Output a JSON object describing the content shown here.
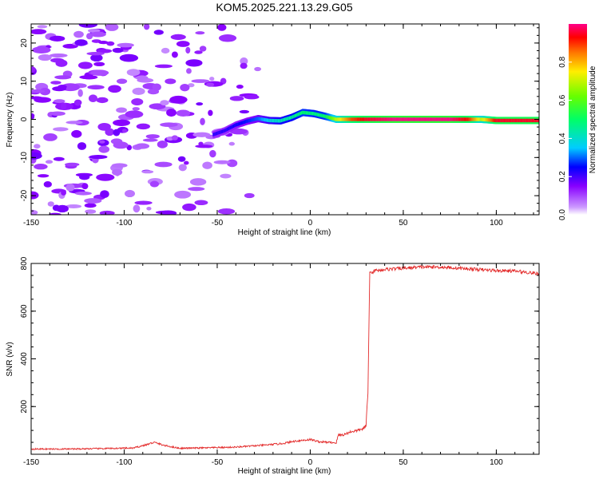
{
  "title": "KOM5.2025.221.13.29.G05",
  "colors": {
    "snr_line": "#e32b2b",
    "axes": "#000000",
    "background": "#ffffff"
  },
  "chart_data": [
    {
      "type": "heatmap",
      "name": "spectrogram",
      "xlabel": "Height of straight line (km)",
      "ylabel": "Frequency (Hz)",
      "xlim": [
        -150,
        123
      ],
      "ylim": [
        -25,
        25
      ],
      "x_ticks": [
        {
          "v": -150,
          "label": "-150"
        },
        {
          "v": -100,
          "label": "-100"
        },
        {
          "v": -50,
          "label": "-50"
        },
        {
          "v": 0,
          "label": "0"
        },
        {
          "v": 50,
          "label": "50"
        },
        {
          "v": 100,
          "label": "100"
        }
      ],
      "y_ticks": [
        {
          "v": 20,
          "label": "20"
        },
        {
          "v": 10,
          "label": "10"
        },
        {
          "v": 0,
          "label": "0"
        },
        {
          "v": -10,
          "label": "-10"
        },
        {
          "v": -20,
          "label": "-20"
        }
      ],
      "colorbar": {
        "label": "Normalized spectral amplitude",
        "range": [
          0,
          1
        ],
        "ticks": [
          {
            "v": 0.0,
            "label": "0.0"
          },
          {
            "v": 0.2,
            "label": "0.2"
          },
          {
            "v": 0.4,
            "label": "0.4"
          },
          {
            "v": 0.6,
            "label": "0.6"
          },
          {
            "v": 0.8,
            "label": "0.8"
          }
        ]
      },
      "ridge": [
        {
          "x": -52,
          "f": -4.0,
          "amp": 0.22
        },
        {
          "x": -46,
          "f": -3.0,
          "amp": 0.22
        },
        {
          "x": -40,
          "f": -1.5,
          "amp": 0.24
        },
        {
          "x": -34,
          "f": -0.5,
          "amp": 0.26
        },
        {
          "x": -28,
          "f": 0.2,
          "amp": 0.3
        },
        {
          "x": -22,
          "f": -0.3,
          "amp": 0.38
        },
        {
          "x": -16,
          "f": -0.4,
          "amp": 0.42
        },
        {
          "x": -10,
          "f": 0.5,
          "amp": 0.45
        },
        {
          "x": -4,
          "f": 1.8,
          "amp": 0.5
        },
        {
          "x": 2,
          "f": 1.5,
          "amp": 0.48
        },
        {
          "x": 8,
          "f": 0.8,
          "amp": 0.5
        },
        {
          "x": 14,
          "f": 0.0,
          "amp": 0.7
        },
        {
          "x": 22,
          "f": 0.0,
          "amp": 0.88
        },
        {
          "x": 30,
          "f": 0.0,
          "amp": 0.95
        },
        {
          "x": 45,
          "f": 0.0,
          "amp": 1.0
        },
        {
          "x": 60,
          "f": 0.0,
          "amp": 1.0
        },
        {
          "x": 75,
          "f": 0.0,
          "amp": 1.0
        },
        {
          "x": 85,
          "f": 0.0,
          "amp": 0.92
        },
        {
          "x": 92,
          "f": 0.0,
          "amp": 0.7
        },
        {
          "x": 100,
          "f": -0.3,
          "amp": 0.95
        },
        {
          "x": 112,
          "f": -0.3,
          "amp": 0.95
        },
        {
          "x": 123,
          "f": -0.3,
          "amp": 0.95
        }
      ]
    },
    {
      "type": "line",
      "name": "snr",
      "xlabel": "Height of straight line (km)",
      "ylabel": "SNR (v/v)",
      "xlim": [
        -150,
        123
      ],
      "ylim": [
        0,
        800
      ],
      "x_ticks": [
        {
          "v": -150,
          "label": "-150"
        },
        {
          "v": -100,
          "label": "-100"
        },
        {
          "v": -50,
          "label": "-50"
        },
        {
          "v": 0,
          "label": "0"
        },
        {
          "v": 50,
          "label": "50"
        },
        {
          "v": 100,
          "label": "100"
        }
      ],
      "y_ticks": [
        {
          "v": 200,
          "label": "200"
        },
        {
          "v": 400,
          "label": "400"
        },
        {
          "v": 600,
          "label": "600"
        },
        {
          "v": 800,
          "label": "800"
        }
      ],
      "series": [
        {
          "name": "SNR",
          "x": [
            -150,
            -130,
            -110,
            -95,
            -88,
            -84,
            -78,
            -70,
            -55,
            -40,
            -25,
            -15,
            -8,
            0,
            5,
            10,
            14,
            15,
            18,
            22,
            26,
            29,
            30,
            31,
            32,
            35,
            40,
            50,
            60,
            70,
            80,
            90,
            100,
            110,
            120,
            123
          ],
          "y": [
            22,
            22,
            24,
            26,
            40,
            50,
            36,
            25,
            27,
            30,
            38,
            45,
            55,
            62,
            52,
            50,
            48,
            80,
            82,
            95,
            100,
            110,
            120,
            260,
            760,
            770,
            775,
            780,
            785,
            785,
            780,
            775,
            770,
            768,
            760,
            755
          ]
        }
      ]
    }
  ]
}
